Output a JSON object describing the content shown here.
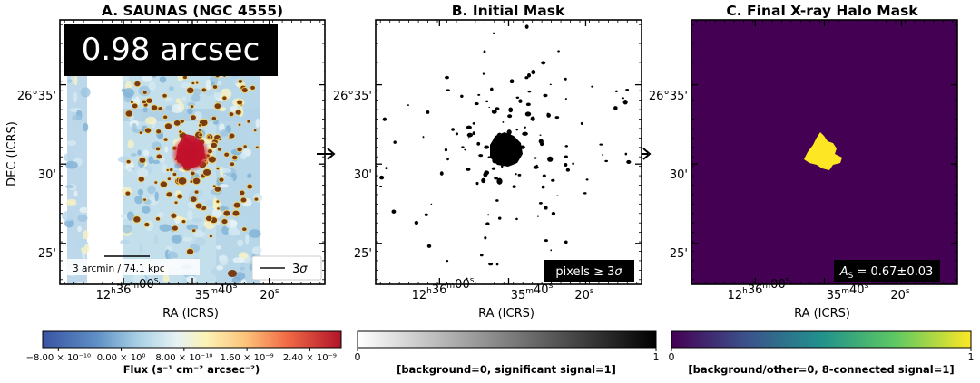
{
  "chart_data": [
    {
      "type": "heatmap",
      "title": "A. SAUNAS (NGC 4555)",
      "xlabel": "RA (ICRS)",
      "ylabel": "DEC (ICRS)",
      "xticks": [
        {
          "h": "12",
          "m": "36",
          "s": "00",
          "sup": [
            "h",
            "m",
            "s"
          ]
        },
        {
          "m": "35",
          "s": "40",
          "sup": [
            "m",
            "s"
          ]
        },
        {
          "s": "20",
          "sup": [
            "s"
          ]
        }
      ],
      "yticks": [
        "26°35'",
        "30'",
        "25'"
      ],
      "badge": "0.98 arcsec",
      "scalebar_label": "3 arcmin / 74.1 kpc",
      "legend": {
        "label": "3σ",
        "symbol": "σ",
        "prefix": "3",
        "placement": "bottom-right"
      },
      "colorbar": {
        "colormap": "RdYlBu_r",
        "label": "Flux (s⁻¹ cm⁻² arcsec⁻²)",
        "range": [
          -1e-09,
          2.8e-09
        ],
        "ticks": [
          "−8.00 × 10⁻¹⁰",
          "0.00 × 10⁰",
          "8.00 × 10⁻¹⁰",
          "1.60 × 10⁻⁹",
          "2.40 × 10⁻⁹"
        ]
      }
    },
    {
      "type": "heatmap",
      "title": "B. Initial Mask",
      "xlabel": "RA (ICRS)",
      "ylabel": "",
      "xticks": [
        {
          "h": "12",
          "m": "36",
          "s": "00",
          "sup": [
            "h",
            "m",
            "s"
          ]
        },
        {
          "m": "35",
          "s": "40",
          "sup": [
            "m",
            "s"
          ]
        },
        {
          "s": "20",
          "sup": [
            "s"
          ]
        }
      ],
      "yticks": [
        "26°35'",
        "30'",
        "25'"
      ],
      "annotation": "pixels ≥ 3σ",
      "colorbar": {
        "colormap": "Greys",
        "label": "[background=0, significant signal=1]",
        "range": [
          0,
          1
        ],
        "ticks": [
          "0",
          "1"
        ]
      }
    },
    {
      "type": "heatmap",
      "title": "C. Final X-ray Halo Mask",
      "xlabel": "RA (ICRS)",
      "ylabel": "",
      "xticks": [
        {
          "h": "12",
          "m": "36",
          "s": "00",
          "sup": [
            "h",
            "m",
            "s"
          ]
        },
        {
          "m": "35",
          "s": "40",
          "sup": [
            "m",
            "s"
          ]
        },
        {
          "s": "20",
          "sup": [
            "s"
          ]
        }
      ],
      "yticks": [
        "26°35'",
        "30'",
        "25'"
      ],
      "annotation": "A_S = 0.67±0.03",
      "colorbar": {
        "colormap": "viridis",
        "label": "[background/other=0, 8-connected signal=1]",
        "range": [
          0,
          1
        ],
        "ticks": [
          "0",
          "1"
        ]
      }
    }
  ],
  "colors": {
    "viridis_low": "#440154",
    "viridis_high": "#fde725",
    "mask_on": "#000000",
    "mask_off": "#ffffff",
    "saunas_contour": "#8b4513",
    "saunas_core": "#c0102a"
  }
}
